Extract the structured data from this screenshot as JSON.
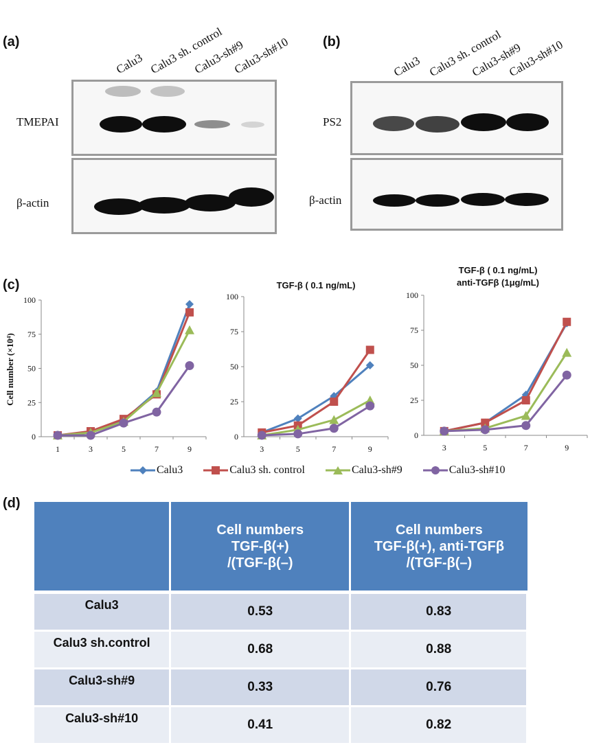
{
  "panel_a": {
    "label": "(a)",
    "lanes": [
      "Calu3",
      "Calu3 sh. control",
      "Calu3-sh#9",
      "Calu3-sh#10"
    ],
    "blot_top_label": "TMEPAI",
    "blot_bottom_label": "β-actin"
  },
  "panel_b": {
    "label": "(b)",
    "lanes": [
      "Calu3",
      "Calu3 sh. control",
      "Calu3-sh#9",
      "Calu3-sh#10"
    ],
    "blot_top_label": "PS2",
    "blot_bottom_label": "β-actin"
  },
  "panel_c": {
    "label": "(c)",
    "ylabel": "Cell number (×10⁴)",
    "colors": {
      "Calu3": "#4f81bd",
      "Calu3 sh. control": "#c0504d",
      "Calu3-sh#9": "#9bbb59",
      "Calu3-sh#10": "#8064a2"
    },
    "legend": [
      "Calu3",
      "Calu3 sh. control",
      "Calu3-sh#9",
      "Calu3-sh#10"
    ]
  },
  "chart_data": [
    {
      "type": "line",
      "title": "",
      "xlabel": "",
      "ylabel": "Cell number (×10⁴)",
      "x": [
        1,
        3,
        5,
        7,
        9
      ],
      "ylim": [
        0,
        100
      ],
      "yticks": [
        0,
        25,
        50,
        75,
        100
      ],
      "series": [
        {
          "name": "Calu3",
          "values": [
            1,
            3,
            12,
            33,
            97
          ]
        },
        {
          "name": "Calu3 sh. control",
          "values": [
            1,
            4,
            13,
            31,
            91
          ]
        },
        {
          "name": "Calu3-sh#9",
          "values": [
            1,
            3,
            11,
            32,
            78
          ]
        },
        {
          "name": "Calu3-sh#10",
          "values": [
            1,
            1,
            10,
            18,
            52
          ]
        }
      ]
    },
    {
      "type": "line",
      "title": "TGF-β ( 0.1 ng/mL)",
      "xlabel": "",
      "ylabel": "",
      "x": [
        3,
        5,
        7,
        9
      ],
      "ylim": [
        0,
        100
      ],
      "yticks": [
        0,
        25,
        50,
        75,
        100
      ],
      "series": [
        {
          "name": "Calu3",
          "values": [
            3,
            13,
            29,
            51
          ]
        },
        {
          "name": "Calu3 sh. control",
          "values": [
            3,
            8,
            25,
            62
          ]
        },
        {
          "name": "Calu3-sh#9",
          "values": [
            1,
            5,
            12,
            26
          ]
        },
        {
          "name": "Calu3-sh#10",
          "values": [
            1,
            2,
            6,
            22
          ]
        }
      ]
    },
    {
      "type": "line",
      "title": "TGF-β ( 0.1 ng/mL)\nanti-TGFβ (1μg/mL)",
      "title_line1": "TGF-β ( 0.1 ng/mL)",
      "title_line2": "anti-TGFβ (1μg/mL)",
      "xlabel": "",
      "ylabel": "",
      "x": [
        3,
        5,
        7,
        9
      ],
      "ylim": [
        0,
        100
      ],
      "yticks": [
        0,
        25,
        50,
        75,
        100
      ],
      "series": [
        {
          "name": "Calu3",
          "values": [
            3,
            9,
            29,
            80
          ]
        },
        {
          "name": "Calu3 sh. control",
          "values": [
            3,
            9,
            25,
            81
          ]
        },
        {
          "name": "Calu3-sh#9",
          "values": [
            3,
            5,
            14,
            59
          ]
        },
        {
          "name": "Calu3-sh#10",
          "values": [
            3,
            4,
            7,
            43
          ]
        }
      ]
    }
  ],
  "panel_d": {
    "label": "(d)",
    "header": {
      "col1_line1": "Cell numbers",
      "col1_line2": "TGF-β(+)",
      "col1_line3": "/(TGF-β(–)",
      "col2_line1": "Cell numbers",
      "col2_line2": "TGF-β(+), anti-TGFβ",
      "col2_line3": "/(TGF-β(–)"
    },
    "rows": [
      {
        "name": "Calu3",
        "v1": "0.53",
        "v2": "0.83"
      },
      {
        "name": "Calu3 sh.control",
        "v1": "0.68",
        "v2": "0.88"
      },
      {
        "name": "Calu3-sh#9",
        "v1": "0.33",
        "v2": "0.76"
      },
      {
        "name": "Calu3-sh#10",
        "v1": "0.41",
        "v2": "0.82"
      }
    ]
  }
}
